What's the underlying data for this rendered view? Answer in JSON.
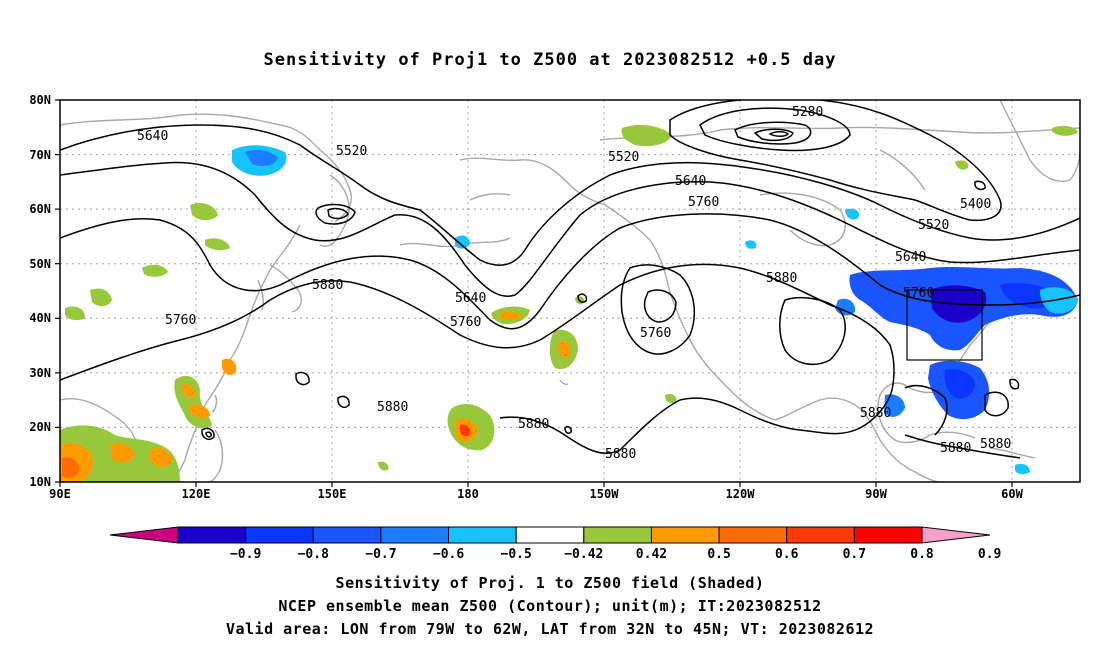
{
  "title": "Sensitivity of Proj1 to Z500 at 2023082512 +0.5 day",
  "lat_labels": [
    "80N",
    "70N",
    "60N",
    "50N",
    "40N",
    "30N",
    "20N",
    "10N"
  ],
  "lon_labels": [
    "90E",
    "120E",
    "150E",
    "180",
    "150W",
    "120W",
    "90W",
    "60W"
  ],
  "contour_labels": [
    "5280",
    "5400",
    "5520",
    "5520",
    "5520",
    "5640",
    "5640",
    "5640",
    "5640",
    "5760",
    "5760",
    "5760",
    "5760",
    "5760",
    "5880",
    "5880",
    "5880",
    "5880",
    "5880",
    "5880",
    "5880"
  ],
  "colorbar": {
    "labels": [
      "-0.9",
      "-0.8",
      "-0.7",
      "-0.6",
      "-0.5",
      "-0.42",
      "0.42",
      "0.5",
      "0.6",
      "0.7",
      "0.8",
      "0.9"
    ],
    "colors": [
      "#c8007e",
      "#1a00c8",
      "#0b36ff",
      "#1a55ff",
      "#1a7dff",
      "#17c3ff",
      "#ffffff",
      "#97c83c",
      "#ff9a00",
      "#ff6b00",
      "#ff3a00",
      "#ff0000",
      "#f5a0c8"
    ]
  },
  "footer": {
    "line1": "Sensitivity of Proj. 1 to Z500 field (Shaded)",
    "line2": "NCEP ensemble mean Z500 (Contour); unit(m); IT:2023082512",
    "line3": "Valid area: LON from 79W to 62W, LAT from 32N to 45N; VT: 2023082612"
  },
  "map_extent": {
    "lon_range": [
      "90E",
      "50W"
    ],
    "lat_range": [
      10,
      80
    ]
  }
}
